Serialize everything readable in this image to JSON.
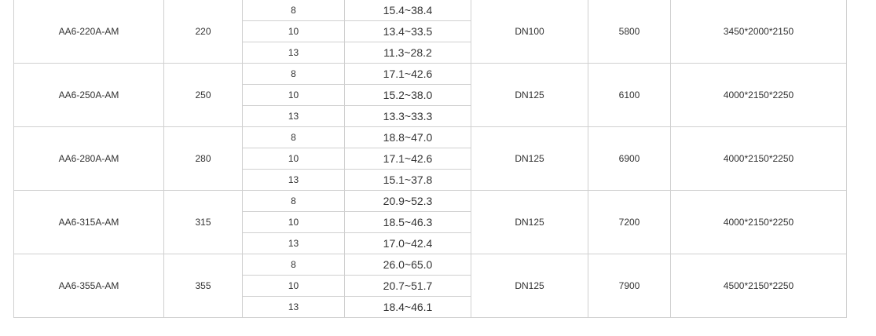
{
  "rows": [
    {
      "model": "AA6-220A-AM",
      "power": "220",
      "sub": [
        {
          "p": "8",
          "r": "15.4~38.4"
        },
        {
          "p": "10",
          "r": "13.4~33.5"
        },
        {
          "p": "13",
          "r": "11.3~28.2"
        }
      ],
      "pipe": "DN100",
      "weight": "5800",
      "dim": "3450*2000*2150"
    },
    {
      "model": "AA6-250A-AM",
      "power": "250",
      "sub": [
        {
          "p": "8",
          "r": "17.1~42.6"
        },
        {
          "p": "10",
          "r": "15.2~38.0"
        },
        {
          "p": "13",
          "r": "13.3~33.3"
        }
      ],
      "pipe": "DN125",
      "weight": "6100",
      "dim": "4000*2150*2250"
    },
    {
      "model": "AA6-280A-AM",
      "power": "280",
      "sub": [
        {
          "p": "8",
          "r": "18.8~47.0"
        },
        {
          "p": "10",
          "r": "17.1~42.6"
        },
        {
          "p": "13",
          "r": "15.1~37.8"
        }
      ],
      "pipe": "DN125",
      "weight": "6900",
      "dim": "4000*2150*2250"
    },
    {
      "model": "AA6-315A-AM",
      "power": "315",
      "sub": [
        {
          "p": "8",
          "r": "20.9~52.3"
        },
        {
          "p": "10",
          "r": "18.5~46.3"
        },
        {
          "p": "13",
          "r": "17.0~42.4"
        }
      ],
      "pipe": "DN125",
      "weight": "7200",
      "dim": "4000*2150*2250"
    },
    {
      "model": "AA6-355A-AM",
      "power": "355",
      "sub": [
        {
          "p": "8",
          "r": "26.0~65.0"
        },
        {
          "p": "10",
          "r": "20.7~51.7"
        },
        {
          "p": "13",
          "r": "18.4~46.1"
        }
      ],
      "pipe": "DN125",
      "weight": "7900",
      "dim": "4500*2150*2250"
    }
  ]
}
